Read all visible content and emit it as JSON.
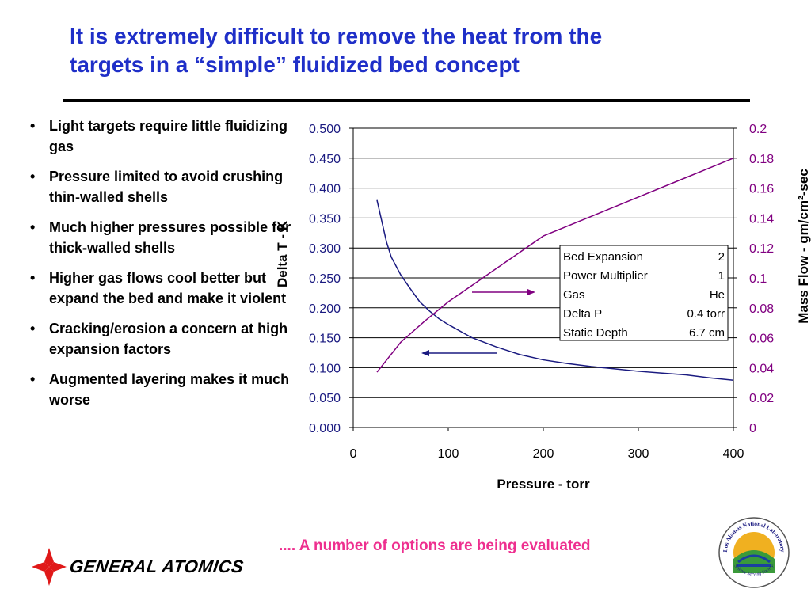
{
  "title": {
    "line1": "It is extremely difficult to remove the heat from the",
    "line2": "targets in a “simple” fluidized bed concept"
  },
  "bullets": [
    "Light targets require little fluidizing gas",
    "Pressure limited to avoid crushing thin-walled shells",
    "Much higher pressures possible for thick-walled shells",
    "Higher gas flows cool better but expand the bed and make it violent",
    "Cracking/erosion a concern at high expansion factors",
    "Augmented layering makes it much worse"
  ],
  "footer_note": ".... A number of options are being evaluated",
  "logos": {
    "general_atomics": "GENERAL ATOMICS",
    "lanl_top": "Los Alamos National Laboratory",
    "lanl_bottom": "Science Serving Society"
  },
  "colors": {
    "title": "#1f2fc8",
    "delta_t_series": "#1a1a80",
    "mass_flow_series": "#800080",
    "footer_note": "#ee2f8f",
    "ga_red": "#e01818"
  },
  "chart_data": {
    "type": "line",
    "xlabel": "Pressure - torr",
    "ylabel_left": "Delta T - K",
    "ylabel_right": "Mass Flow - gm/cm²-sec",
    "xlim": [
      0,
      400
    ],
    "x_ticks": [
      "0",
      "100",
      "200",
      "300",
      "400"
    ],
    "ylim_left": [
      0,
      0.5
    ],
    "y_ticks_left": [
      "0.000",
      "0.050",
      "0.100",
      "0.150",
      "0.200",
      "0.250",
      "0.300",
      "0.350",
      "0.400",
      "0.450",
      "0.500"
    ],
    "ylim_right": [
      0,
      0.2
    ],
    "y_ticks_right": [
      "0",
      "0.02",
      "0.04",
      "0.06",
      "0.08",
      "0.1",
      "0.12",
      "0.14",
      "0.16",
      "0.18",
      "0.2"
    ],
    "grid": "horizontal",
    "series": [
      {
        "axis": "left",
        "color": "#1a1a80",
        "x": [
          25,
          30,
          35,
          40,
          50,
          60,
          70,
          80,
          90,
          100,
          125,
          150,
          175,
          200,
          225,
          250,
          275,
          300,
          325,
          350,
          375,
          400
        ],
        "y": [
          0.38,
          0.345,
          0.31,
          0.285,
          0.255,
          0.232,
          0.21,
          0.195,
          0.182,
          0.172,
          0.15,
          0.135,
          0.122,
          0.113,
          0.107,
          0.102,
          0.098,
          0.094,
          0.091,
          0.088,
          0.083,
          0.079
        ]
      },
      {
        "axis": "right",
        "color": "#800080",
        "x": [
          25,
          50,
          75,
          100,
          125,
          150,
          175,
          200,
          250,
          300,
          350,
          400
        ],
        "y": [
          0.037,
          0.057,
          0.071,
          0.084,
          0.095,
          0.106,
          0.117,
          0.128,
          0.141,
          0.154,
          0.167,
          0.18
        ]
      }
    ],
    "info_table": [
      [
        "Bed Expansion",
        "2"
      ],
      [
        "Power Multiplier",
        "1"
      ],
      [
        "Gas",
        "He"
      ],
      [
        "Delta P",
        "0.4 torr"
      ],
      [
        "Static Depth",
        "6.7 cm"
      ]
    ],
    "arrows": [
      {
        "direction": "right",
        "points_to": "right axis"
      },
      {
        "direction": "left",
        "points_to": "left axis"
      }
    ]
  }
}
